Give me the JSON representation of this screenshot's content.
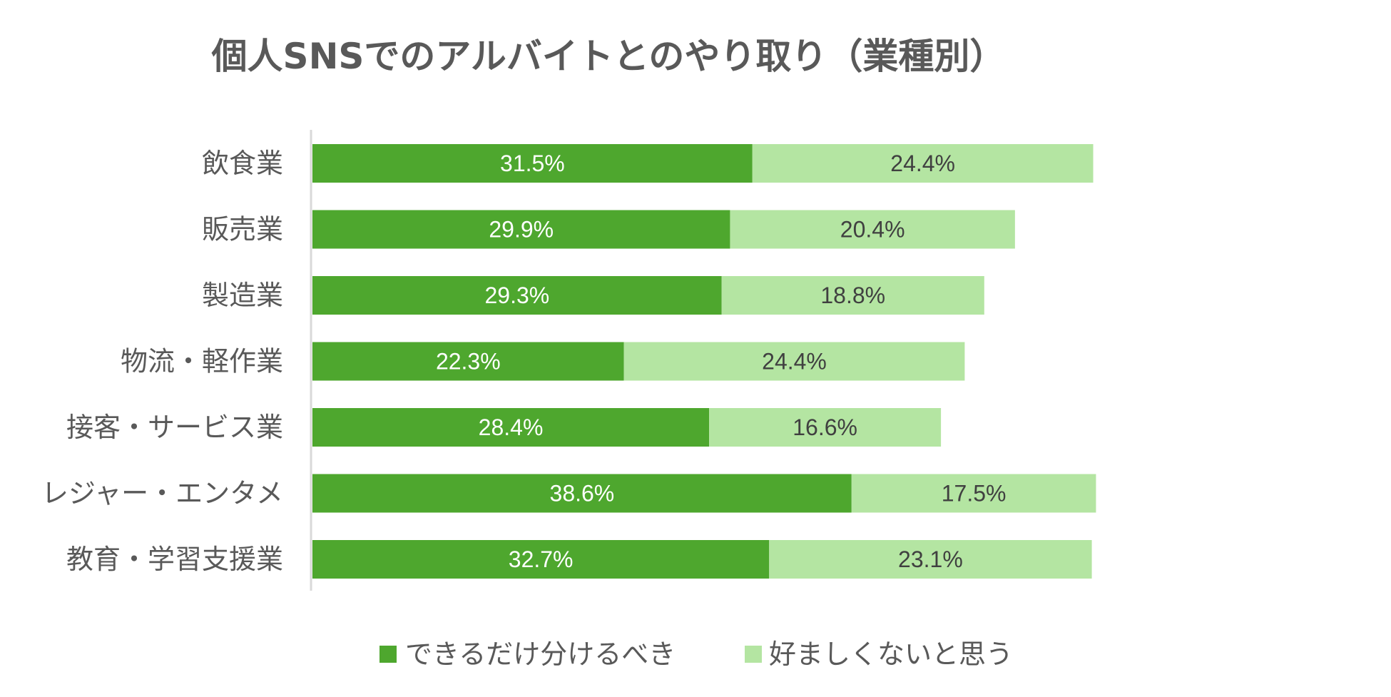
{
  "chart_data": {
    "type": "bar",
    "orientation": "horizontal",
    "stacked": true,
    "title": "個人SNSでのアルバイトとのやり取り（業種別）",
    "categories": [
      "飲食業",
      "販売業",
      "製造業",
      "物流・軽作業",
      "接客・サービス業",
      "レジャー・エンタメ",
      "教育・学習支援業"
    ],
    "series": [
      {
        "name": "できるだけ分けるべき",
        "values": [
          31.5,
          29.9,
          29.3,
          22.3,
          28.4,
          38.6,
          32.7
        ],
        "labels": [
          "31.5%",
          "29.9%",
          "29.3%",
          "22.3%",
          "28.4%",
          "38.6%",
          "32.7%"
        ],
        "color": "#4ea72e"
      },
      {
        "name": "好ましくないと思う",
        "values": [
          24.4,
          20.4,
          18.8,
          24.4,
          16.6,
          17.5,
          23.1
        ],
        "labels": [
          "24.4%",
          "20.4%",
          "18.8%",
          "24.4%",
          "16.6%",
          "17.5%",
          "23.1%"
        ],
        "color": "#b4e5a2"
      }
    ],
    "unit": "%",
    "legend_position": "bottom",
    "grid": false
  }
}
